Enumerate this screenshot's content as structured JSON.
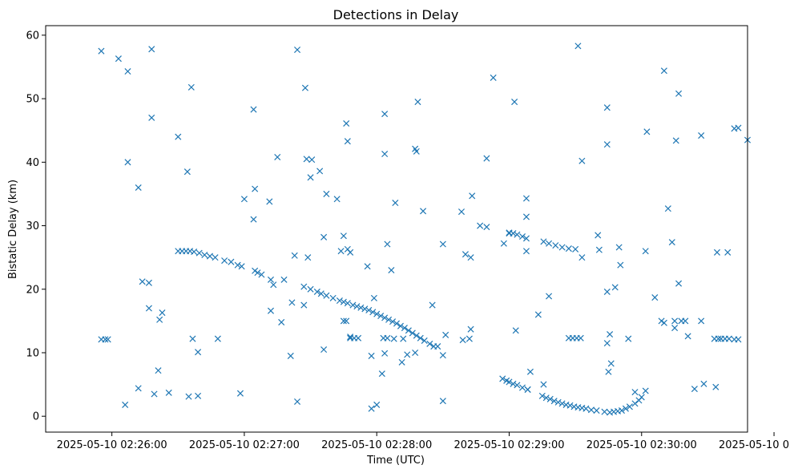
{
  "chart_data": {
    "type": "scatter",
    "title": "Detections in Delay",
    "xlabel": "Time (UTC)",
    "ylabel": "Bistatic Delay (km)",
    "x_unit": "minutes after 2025-05-10 02:26:00",
    "xlim": [
      -0.5,
      4.8
    ],
    "ylim": [
      -2.5,
      61.5
    ],
    "xticks": [
      {
        "value": 0,
        "label": "2025-05-10 02:26:00"
      },
      {
        "value": 1,
        "label": "2025-05-10 02:27:00"
      },
      {
        "value": 2,
        "label": "2025-05-10 02:28:00"
      },
      {
        "value": 3,
        "label": "2025-05-10 02:29:00"
      },
      {
        "value": 4,
        "label": "2025-05-10 02:30:00"
      },
      {
        "value": 5,
        "label": "2025-05-10 02:31:00"
      }
    ],
    "yticks": [
      {
        "value": 0,
        "label": "0"
      },
      {
        "value": 10,
        "label": "10"
      },
      {
        "value": 20,
        "label": "20"
      },
      {
        "value": 30,
        "label": "30"
      },
      {
        "value": 40,
        "label": "40"
      },
      {
        "value": 50,
        "label": "50"
      },
      {
        "value": 60,
        "label": "60"
      }
    ],
    "marker": "x",
    "color": "#1f77b4",
    "series": [
      {
        "name": "track-a-descending",
        "points": [
          [
            0.5,
            26
          ],
          [
            0.53,
            26
          ],
          [
            0.56,
            26
          ],
          [
            0.59,
            26
          ],
          [
            0.62,
            25.9
          ],
          [
            0.66,
            25.7
          ],
          [
            0.7,
            25.4
          ],
          [
            0.74,
            25.2
          ],
          [
            0.78,
            25
          ],
          [
            0.85,
            24.5
          ],
          [
            0.9,
            24.3
          ],
          [
            0.95,
            23.8
          ],
          [
            0.98,
            23.6
          ],
          [
            1.08,
            22.9
          ],
          [
            1.1,
            22.6
          ],
          [
            1.13,
            22.3
          ],
          [
            1.2,
            21.5
          ],
          [
            1.45,
            20.4
          ],
          [
            1.5,
            20
          ],
          [
            1.55,
            19.6
          ],
          [
            1.58,
            19.3
          ],
          [
            1.62,
            19
          ],
          [
            1.67,
            18.6
          ],
          [
            1.72,
            18.2
          ],
          [
            1.75,
            18
          ],
          [
            1.78,
            17.8
          ],
          [
            1.82,
            17.5
          ],
          [
            1.85,
            17.3
          ],
          [
            1.88,
            17.1
          ],
          [
            1.91,
            16.9
          ],
          [
            1.94,
            16.7
          ],
          [
            1.97,
            16.4
          ],
          [
            2,
            16.1
          ],
          [
            2.03,
            15.8
          ],
          [
            2.06,
            15.5
          ],
          [
            2.09,
            15.2
          ],
          [
            2.12,
            14.9
          ],
          [
            2.15,
            14.6
          ],
          [
            2.18,
            14.2
          ],
          [
            2.21,
            13.9
          ],
          [
            2.24,
            13.5
          ],
          [
            2.27,
            13.1
          ],
          [
            2.3,
            12.7
          ],
          [
            2.33,
            12.3
          ],
          [
            2.36,
            11.9
          ],
          [
            2.4,
            11.4
          ],
          [
            2.43,
            11
          ]
        ]
      },
      {
        "name": "track-b-descending",
        "points": [
          [
            3.0,
            28.9
          ],
          [
            3.03,
            28.8
          ],
          [
            3.06,
            28.6
          ],
          [
            3.1,
            28.3
          ],
          [
            3.13,
            28
          ],
          [
            3.26,
            27.5
          ],
          [
            3.3,
            27.2
          ],
          [
            3.35,
            26.9
          ],
          [
            3.4,
            26.6
          ],
          [
            3.45,
            26.4
          ],
          [
            3.5,
            26.3
          ],
          [
            3.55,
            25
          ]
        ]
      },
      {
        "name": "track-c-curve",
        "points": [
          [
            2.95,
            5.9
          ],
          [
            2.98,
            5.6
          ],
          [
            3.0,
            5.4
          ],
          [
            3.03,
            5.1
          ],
          [
            3.06,
            4.9
          ],
          [
            3.1,
            4.5
          ],
          [
            3.14,
            4.2
          ],
          [
            3.25,
            3.2
          ],
          [
            3.28,
            2.9
          ],
          [
            3.31,
            2.7
          ],
          [
            3.34,
            2.4
          ],
          [
            3.37,
            2.2
          ],
          [
            3.4,
            2
          ],
          [
            3.43,
            1.8
          ],
          [
            3.46,
            1.7
          ],
          [
            3.49,
            1.5
          ],
          [
            3.52,
            1.4
          ],
          [
            3.55,
            1.3
          ],
          [
            3.58,
            1.2
          ],
          [
            3.62,
            1
          ],
          [
            3.66,
            0.9
          ],
          [
            3.72,
            0.7
          ],
          [
            3.76,
            0.6
          ],
          [
            3.79,
            0.7
          ],
          [
            3.82,
            0.8
          ],
          [
            3.85,
            0.9
          ],
          [
            3.88,
            1.2
          ],
          [
            3.91,
            1.5
          ],
          [
            3.95,
            2
          ],
          [
            3.98,
            2.5
          ],
          [
            4.0,
            3
          ]
        ]
      },
      {
        "name": "const-12km",
        "points": [
          [
            -0.08,
            12.1
          ],
          [
            -0.05,
            12.1
          ],
          [
            -0.03,
            12.1
          ],
          [
            1.8,
            12.3
          ],
          [
            1.83,
            12.3
          ],
          [
            1.86,
            12.3
          ],
          [
            2.05,
            12.3
          ],
          [
            2.08,
            12.3
          ],
          [
            2.2,
            12.2
          ],
          [
            3.45,
            12.3
          ],
          [
            3.48,
            12.3
          ],
          [
            3.51,
            12.3
          ],
          [
            3.54,
            12.3
          ],
          [
            4.55,
            12.2
          ],
          [
            4.58,
            12.2
          ],
          [
            4.6,
            12.2
          ],
          [
            4.63,
            12.2
          ],
          [
            4.66,
            12.2
          ],
          [
            4.7,
            12.1
          ],
          [
            4.73,
            12.1
          ],
          [
            1.75,
            15
          ],
          [
            1.77,
            15
          ],
          [
            4.3,
            15
          ],
          [
            4.33,
            15
          ],
          [
            4.45,
            15
          ]
        ]
      },
      {
        "name": "clutter",
        "points": [
          [
            -0.08,
            57.5
          ],
          [
            0.05,
            56.3
          ],
          [
            0.12,
            54.3
          ],
          [
            0.3,
            57.8
          ],
          [
            0.6,
            51.8
          ],
          [
            0.3,
            47
          ],
          [
            0.12,
            40
          ],
          [
            0.2,
            36
          ],
          [
            0.5,
            44
          ],
          [
            0.57,
            38.5
          ],
          [
            0.23,
            21.2
          ],
          [
            0.28,
            21
          ],
          [
            0.28,
            17
          ],
          [
            0.38,
            16.3
          ],
          [
            0.36,
            15.2
          ],
          [
            0.35,
            7.2
          ],
          [
            0.2,
            4.4
          ],
          [
            0.32,
            3.5
          ],
          [
            0.43,
            3.7
          ],
          [
            0.58,
            3.1
          ],
          [
            0.65,
            3.2
          ],
          [
            0.1,
            1.8
          ],
          [
            0.61,
            12.2
          ],
          [
            0.65,
            10.1
          ],
          [
            0.8,
            12.2
          ],
          [
            0.97,
            3.6
          ],
          [
            1.0,
            34.2
          ],
          [
            1.08,
            35.8
          ],
          [
            1.07,
            31
          ],
          [
            1.07,
            48.3
          ],
          [
            1.25,
            40.8
          ],
          [
            1.19,
            33.8
          ],
          [
            1.22,
            20.7
          ],
          [
            1.3,
            21.5
          ],
          [
            1.38,
            25.3
          ],
          [
            1.36,
            17.9
          ],
          [
            1.28,
            14.8
          ],
          [
            1.2,
            16.6
          ],
          [
            1.35,
            9.5
          ],
          [
            1.4,
            2.3
          ],
          [
            1.4,
            57.7
          ],
          [
            1.46,
            51.7
          ],
          [
            1.47,
            40.5
          ],
          [
            1.51,
            40.4
          ],
          [
            1.5,
            37.6
          ],
          [
            1.57,
            38.6
          ],
          [
            1.48,
            25
          ],
          [
            1.45,
            17.5
          ],
          [
            1.6,
            28.2
          ],
          [
            1.6,
            10.5
          ],
          [
            1.62,
            35
          ],
          [
            1.7,
            34.2
          ],
          [
            1.75,
            28.4
          ],
          [
            1.77,
            46.1
          ],
          [
            1.78,
            43.3
          ],
          [
            1.78,
            26.3
          ],
          [
            1.8,
            25.8
          ],
          [
            1.73,
            26
          ],
          [
            1.8,
            12.5
          ],
          [
            1.93,
            23.6
          ],
          [
            1.96,
            9.5
          ],
          [
            1.96,
            1.2
          ],
          [
            2.0,
            1.8
          ],
          [
            2.04,
            6.7
          ],
          [
            2.06,
            9.9
          ],
          [
            1.98,
            18.6
          ],
          [
            2.06,
            47.6
          ],
          [
            2.06,
            41.3
          ],
          [
            2.08,
            27.1
          ],
          [
            2.11,
            23
          ],
          [
            2.14,
            33.6
          ],
          [
            2.13,
            12.2
          ],
          [
            2.19,
            8.5
          ],
          [
            2.23,
            9.7
          ],
          [
            2.29,
            10
          ],
          [
            2.31,
            49.5
          ],
          [
            2.29,
            42.1
          ],
          [
            2.3,
            41.7
          ],
          [
            2.35,
            32.3
          ],
          [
            2.42,
            17.5
          ],
          [
            2.46,
            11
          ],
          [
            2.5,
            9.6
          ],
          [
            2.5,
            27.1
          ],
          [
            2.52,
            12.8
          ],
          [
            2.5,
            2.4
          ],
          [
            2.64,
            32.2
          ],
          [
            2.67,
            25.5
          ],
          [
            2.71,
            25
          ],
          [
            2.71,
            13.7
          ],
          [
            2.7,
            12.2
          ],
          [
            2.65,
            12
          ],
          [
            2.72,
            34.7
          ],
          [
            2.78,
            30
          ],
          [
            2.83,
            29.8
          ],
          [
            2.83,
            40.6
          ],
          [
            2.88,
            53.3
          ],
          [
            2.96,
            27.2
          ],
          [
            3.0,
            28.8
          ],
          [
            3.04,
            49.5
          ],
          [
            3.05,
            13.5
          ],
          [
            3.13,
            34.3
          ],
          [
            3.13,
            31.4
          ],
          [
            3.13,
            26
          ],
          [
            3.16,
            7
          ],
          [
            3.14,
            4.2
          ],
          [
            3.22,
            16
          ],
          [
            3.26,
            5
          ],
          [
            3.3,
            18.9
          ],
          [
            3.52,
            58.3
          ],
          [
            3.55,
            40.2
          ],
          [
            3.67,
            28.5
          ],
          [
            3.68,
            26.2
          ],
          [
            3.74,
            48.6
          ],
          [
            3.74,
            42.8
          ],
          [
            3.74,
            19.6
          ],
          [
            3.76,
            12.9
          ],
          [
            3.74,
            11.5
          ],
          [
            3.75,
            7
          ],
          [
            3.77,
            8.3
          ],
          [
            3.8,
            20.3
          ],
          [
            3.83,
            26.6
          ],
          [
            3.84,
            23.8
          ],
          [
            3.9,
            12.2
          ],
          [
            3.95,
            3.8
          ],
          [
            4.03,
            4
          ],
          [
            4.03,
            26
          ],
          [
            4.1,
            18.7
          ],
          [
            4.15,
            15
          ],
          [
            4.17,
            14.7
          ],
          [
            4.2,
            32.7
          ],
          [
            4.23,
            27.4
          ],
          [
            4.25,
            13.9
          ],
          [
            4.25,
            15
          ],
          [
            4.26,
            43.4
          ],
          [
            4.28,
            50.8
          ],
          [
            4.28,
            20.9
          ],
          [
            4.17,
            54.4
          ],
          [
            4.04,
            44.8
          ],
          [
            4.35,
            12.6
          ],
          [
            4.4,
            4.3
          ],
          [
            4.45,
            44.2
          ],
          [
            4.47,
            5.1
          ],
          [
            4.56,
            4.6
          ],
          [
            4.57,
            25.8
          ],
          [
            4.65,
            25.8
          ],
          [
            4.7,
            45.3
          ],
          [
            4.73,
            45.4
          ],
          [
            4.8,
            43.5
          ],
          [
            4.83,
            26.1
          ],
          [
            4.85,
            26
          ]
        ]
      }
    ]
  }
}
